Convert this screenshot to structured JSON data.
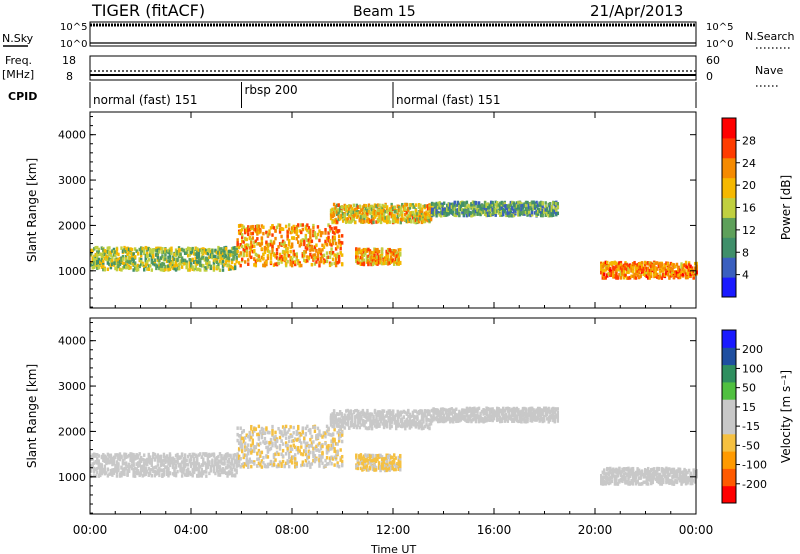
{
  "header": {
    "title": "TIGER (fitACF)",
    "beam": "Beam 15",
    "date": "21/Apr/2013"
  },
  "strip_labels": {
    "nsky": "N.Sky",
    "nsky_top": "10^5",
    "nsky_bottom": "10^0",
    "nsearch": "N.Search",
    "nsearch_top": "10^5",
    "nsearch_bottom": "10^0",
    "freq_line1": "Freq.",
    "freq_line2": "[MHz]",
    "freq_top": "18",
    "freq_bottom": "8",
    "nave": "Nave",
    "nave_top": "60",
    "nave_bottom": "0",
    "cpid": "CPID"
  },
  "cpid_segments": [
    {
      "label": "normal (fast) 151",
      "start_hour": 0
    },
    {
      "label": "rbsp 200",
      "start_hour": 6
    },
    {
      "label": "normal (fast) 151",
      "start_hour": 12
    }
  ],
  "colors": {
    "power": [
      "#1a1aff",
      "#3a5fbf",
      "#3f8f6a",
      "#5ea05a",
      "#c0d040",
      "#f5b800",
      "#f58a00",
      "#ff3c00",
      "#ff0000"
    ],
    "velocity": [
      "#ff0000",
      "#ff5a00",
      "#ff9a00",
      "#f5c040",
      "#c8c8c8",
      "#c8c8c8",
      "#50c040",
      "#2f8f5f",
      "#1f4fa0",
      "#1a1aff"
    ]
  },
  "chart_data": [
    {
      "type": "heatmap",
      "name": "power-panel",
      "title": "",
      "xlabel": "Time UT",
      "ylabel": "Slant Range [km]",
      "xlim": [
        0,
        24
      ],
      "ylim": [
        180,
        4500
      ],
      "x_ticks": [
        "00:00",
        "04:00",
        "08:00",
        "12:00",
        "16:00",
        "20:00",
        "00:00"
      ],
      "y_ticks": [
        "1000",
        "2000",
        "3000",
        "4000"
      ],
      "colorbar_label": "Power [dB]",
      "colorbar_ticks": [
        "4",
        "8",
        "12",
        "16",
        "20",
        "24",
        "28"
      ],
      "colorbar_range": [
        0,
        30
      ],
      "echo_bands": [
        {
          "t0": 0.0,
          "t1": 5.8,
          "range_center": 1300,
          "range_width": 500,
          "value": 14
        },
        {
          "t0": 5.8,
          "t1": 10.0,
          "range_center": 1600,
          "range_width": 900,
          "value": 20
        },
        {
          "t0": 9.5,
          "t1": 13.5,
          "range_center": 2300,
          "range_width": 400,
          "value": 18
        },
        {
          "t0": 10.5,
          "t1": 12.3,
          "range_center": 1350,
          "range_width": 350,
          "value": 20
        },
        {
          "t0": 13.5,
          "t1": 18.5,
          "range_center": 2400,
          "range_width": 300,
          "value": 10
        },
        {
          "t0": 20.2,
          "t1": 24.0,
          "range_center": 1050,
          "range_width": 350,
          "value": 22
        }
      ]
    },
    {
      "type": "heatmap",
      "name": "velocity-panel",
      "title": "",
      "xlabel": "Time UT",
      "ylabel": "Slant Range [km]",
      "xlim": [
        0,
        24
      ],
      "ylim": [
        180,
        4500
      ],
      "x_ticks": [
        "00:00",
        "04:00",
        "08:00",
        "12:00",
        "16:00",
        "20:00",
        "00:00"
      ],
      "y_ticks": [
        "1000",
        "2000",
        "3000",
        "4000"
      ],
      "colorbar_label": "Velocity [m s⁻¹]",
      "colorbar_ticks": [
        "200",
        "100",
        "50",
        "15",
        "-15",
        "-50",
        "-100",
        "-200"
      ],
      "colorbar_range": [
        -250,
        250
      ],
      "echo_bands": [
        {
          "t0": 0.0,
          "t1": 5.8,
          "range_center": 1300,
          "range_width": 500,
          "value": 0
        },
        {
          "t0": 5.8,
          "t1": 10.0,
          "range_center": 1700,
          "range_width": 900,
          "value": -40
        },
        {
          "t0": 9.5,
          "t1": 13.5,
          "range_center": 2300,
          "range_width": 400,
          "value": 0
        },
        {
          "t0": 10.5,
          "t1": 12.3,
          "range_center": 1350,
          "range_width": 350,
          "value": -60
        },
        {
          "t0": 13.5,
          "t1": 18.5,
          "range_center": 2400,
          "range_width": 300,
          "value": 0
        },
        {
          "t0": 20.2,
          "t1": 24.0,
          "range_center": 1050,
          "range_width": 350,
          "value": 0
        }
      ]
    }
  ]
}
